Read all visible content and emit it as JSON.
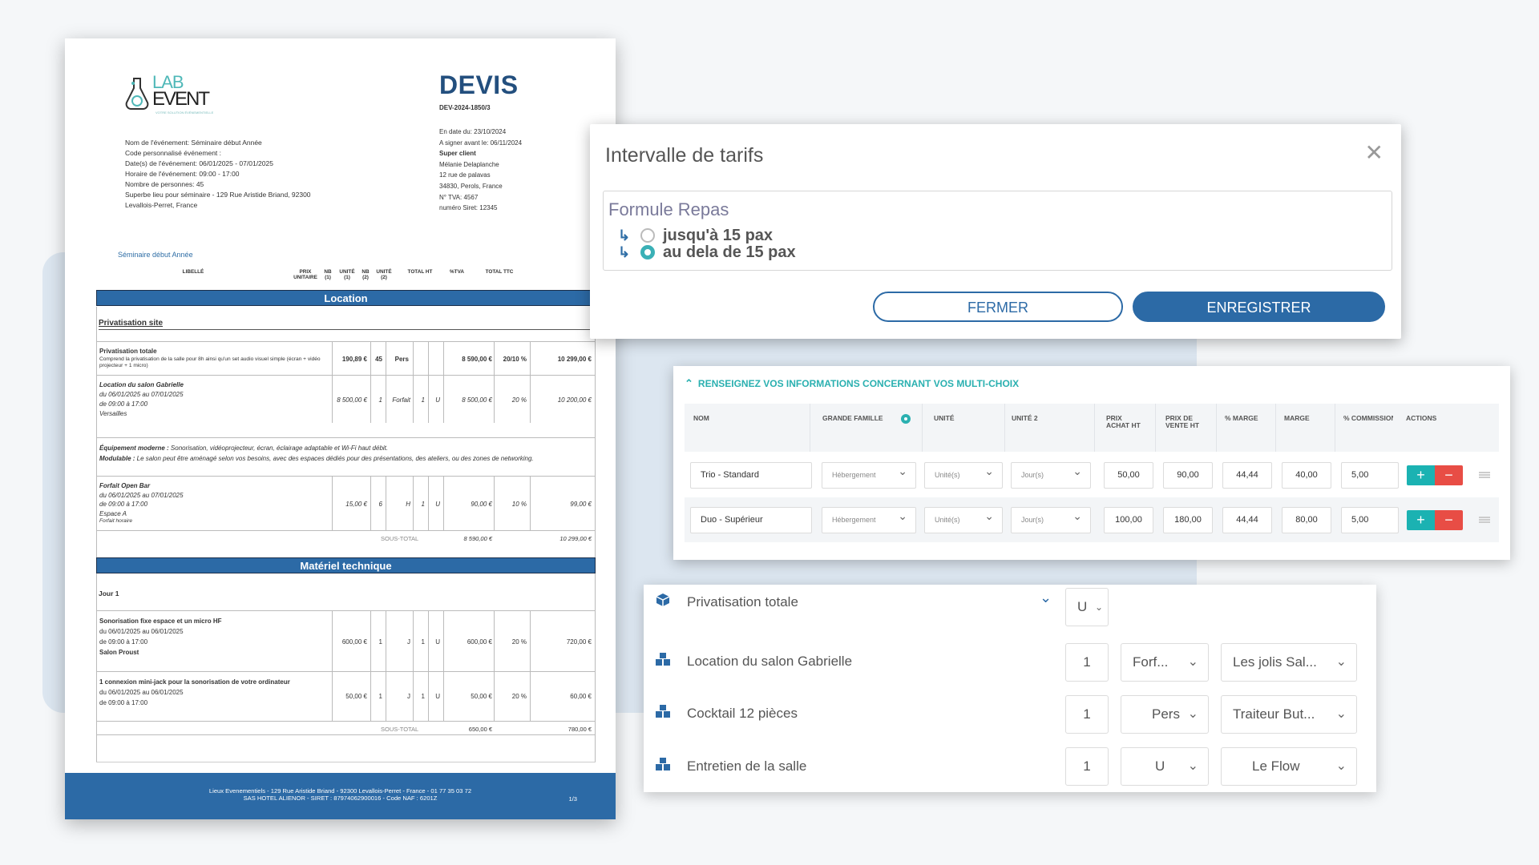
{
  "document": {
    "logo": {
      "lab": "LAB",
      "event": "EVENT",
      "tagline": "VOTRE SOLUTION ÉVÉNEMENTIELLE"
    },
    "title": "DEVIS",
    "number": "DEV-2024-1850/3",
    "event_info": [
      "Nom de l'événement: Séminaire début Année",
      "Code personnalisé événement :",
      "Date(s) de l'événement: 06/01/2025 - 07/01/2025",
      "Horaire de l'événement: 09:00 - 17:00",
      "Nombre de personnes: 45",
      "Superbe lieu pour séminaire - 129 Rue Aristide Briand, 92300",
      "Levallois-Perret, France"
    ],
    "client_info": {
      "date_line": "En date du: 23/10/2024",
      "sign_line": "A signer avant le: 06/11/2024",
      "super_client": "Super client",
      "name": "Mélanie Delaplanche",
      "address1": "12 rue de palavas",
      "address2": "34830, Perols, France",
      "tva": "N° TVA: 4567",
      "siret": "numéro Siret: 12345"
    },
    "event_link": "Séminaire début Année",
    "columns": {
      "libelle": "LIBELLÉ",
      "prix_unitaire": "PRIX UNITAIRE",
      "nb1": "NB (1)",
      "unite1": "UNITÉ (1)",
      "nb2": "NB (2)",
      "unite2": "UNITÉ (2)",
      "total_ht": "TOTAL HT",
      "tva": "%TVA",
      "total_ttc": "TOTAL TTC"
    },
    "section_location": "Location",
    "subsection_privatisation": "Privatisation site",
    "rows_location": [
      {
        "title": "Privatisation totale",
        "detail": "Comprend la privatisation de la salle pour 8h ainsi qu'un set audio visuel simple (écran + vidéo projecteur + 1 micro)",
        "pu": "190,89 €",
        "nb1": "45",
        "u1": "Pers",
        "nb2": "",
        "u2": "",
        "ht": "8 590,00 €",
        "tva": "20/10 %",
        "ttc": "10 299,00 €"
      },
      {
        "title": "Location du salon Gabrielle",
        "l2": "du 06/01/2025 au 07/01/2025",
        "l3": "de 09:00 à 17:00",
        "l4": "Versailles",
        "pu": "8 500,00 €",
        "nb1": "1",
        "u1": "Forfait",
        "nb2": "1",
        "u2": "U",
        "ht": "8 500,00 €",
        "tva": "20 %",
        "ttc": "10 200,00 €"
      },
      {
        "title": "Forfait Open Bar",
        "l2": "du 06/01/2025 au 07/01/2025",
        "l3": "de 09:00 à 17:00",
        "l4": "Espace A",
        "l5": "Forfait horaire",
        "pu": "15,00 €",
        "nb1": "6",
        "u1": "H",
        "nb2": "1",
        "u2": "U",
        "ht": "90,00 €",
        "tva": "10 %",
        "ttc": "99,00 €"
      }
    ],
    "equipment_text": {
      "b1": "Équipement moderne :",
      "t1": " Sonorisation, vidéoprojecteur, écran, éclairage adaptable et Wi-Fi haut débit.",
      "b2": "Modulable :",
      "t2": " Le salon peut être aménagé selon vos besoins, avec des espaces dédiés pour des présentations, des ateliers, ou des zones de networking."
    },
    "subtotal_label": "SOUS-TOTAL",
    "subtotal_location": {
      "ht": "8 590,00 €",
      "ttc": "10 299,00 €"
    },
    "section_materiel": "Matériel technique",
    "jour1": "Jour 1",
    "rows_materiel": [
      {
        "title": "Sonorisation fixe espace et un micro HF",
        "l2": "du 06/01/2025 au 06/01/2025",
        "l3": "de 09:00 à 17:00",
        "l4": "Salon Proust",
        "pu": "600,00 €",
        "nb1": "1",
        "u1": "J",
        "nb2": "1",
        "u2": "U",
        "ht": "600,00 €",
        "tva": "20 %",
        "ttc": "720,00 €"
      },
      {
        "title": "1 connexion mini-jack pour la sonorisation de votre ordinateur",
        "l2": "du 06/01/2025 au 06/01/2025",
        "l3": "de 09:00 à 17:00",
        "pu": "50,00 €",
        "nb1": "1",
        "u1": "J",
        "nb2": "1",
        "u2": "U",
        "ht": "50,00 €",
        "tva": "20 %",
        "ttc": "60,00 €"
      }
    ],
    "subtotal_materiel": {
      "ht": "650,00 €",
      "ttc": "780,00 €"
    },
    "footer_line1": "Lieux Evenementiels - 129 Rue Aristide Briand - 92300 Levallois-Perret - France - 01 77 35 03 72",
    "footer_line2": "SAS HOTEL ALIENOR - SIRET : 87974062900016 - Code NAF : 6201Z",
    "page": "1/3"
  },
  "modal": {
    "title": "Intervalle de tarifs",
    "close": "✕",
    "group_label": "Formule Repas",
    "options": [
      {
        "label": "jusqu'à 15 pax",
        "selected": false
      },
      {
        "label": "au dela de 15 pax",
        "selected": true
      }
    ],
    "btn_close": "FERMER",
    "btn_save": "ENREGISTRER"
  },
  "multichoix": {
    "header": "RENSEIGNEZ VOS INFORMATIONS CONCERNANT VOS MULTI-CHOIX",
    "columns": {
      "nom": "NOM",
      "famille": "GRANDE FAMILLE",
      "unite": "UNITÉ",
      "unite2": "UNITÉ 2",
      "prix_achat": "PRIX ACHAT HT",
      "prix_vente": "PRIX DE VENTE HT",
      "pmarge": "% MARGE",
      "marge": "MARGE",
      "commission": "% COMMISSION",
      "actions": "ACTIONS"
    },
    "rows": [
      {
        "nom": "Trio - Standard",
        "famille": "Hébergement",
        "unite": "Unité(s)",
        "unite2": "Jour(s)",
        "achat": "50,00",
        "vente": "90,00",
        "pmarge": "44,44",
        "marge": "40,00",
        "commission": "5,00"
      },
      {
        "nom": "Duo - Supérieur",
        "famille": "Hébergement",
        "unite": "Unité(s)",
        "unite2": "Jour(s)",
        "achat": "100,00",
        "vente": "180,00",
        "pmarge": "44,44",
        "marge": "80,00",
        "commission": "5,00"
      }
    ],
    "plus": "+",
    "minus": "−"
  },
  "products": {
    "rows": [
      {
        "label": "Privatisation totale",
        "unit": "U"
      },
      {
        "label": "Location du salon Gabrielle",
        "qty": "1",
        "unit": "Forf...",
        "supplier": "Les jolis Sal..."
      },
      {
        "label": "Cocktail 12 pièces",
        "qty": "1",
        "unit": "Pers",
        "supplier": "Traiteur But..."
      },
      {
        "label": "Entretien de la salle",
        "qty": "1",
        "unit": "U",
        "supplier": "Le Flow"
      }
    ]
  },
  "colors": {
    "primary": "#2c6aa6",
    "teal": "#1bb2b2",
    "red": "#e84d45"
  }
}
